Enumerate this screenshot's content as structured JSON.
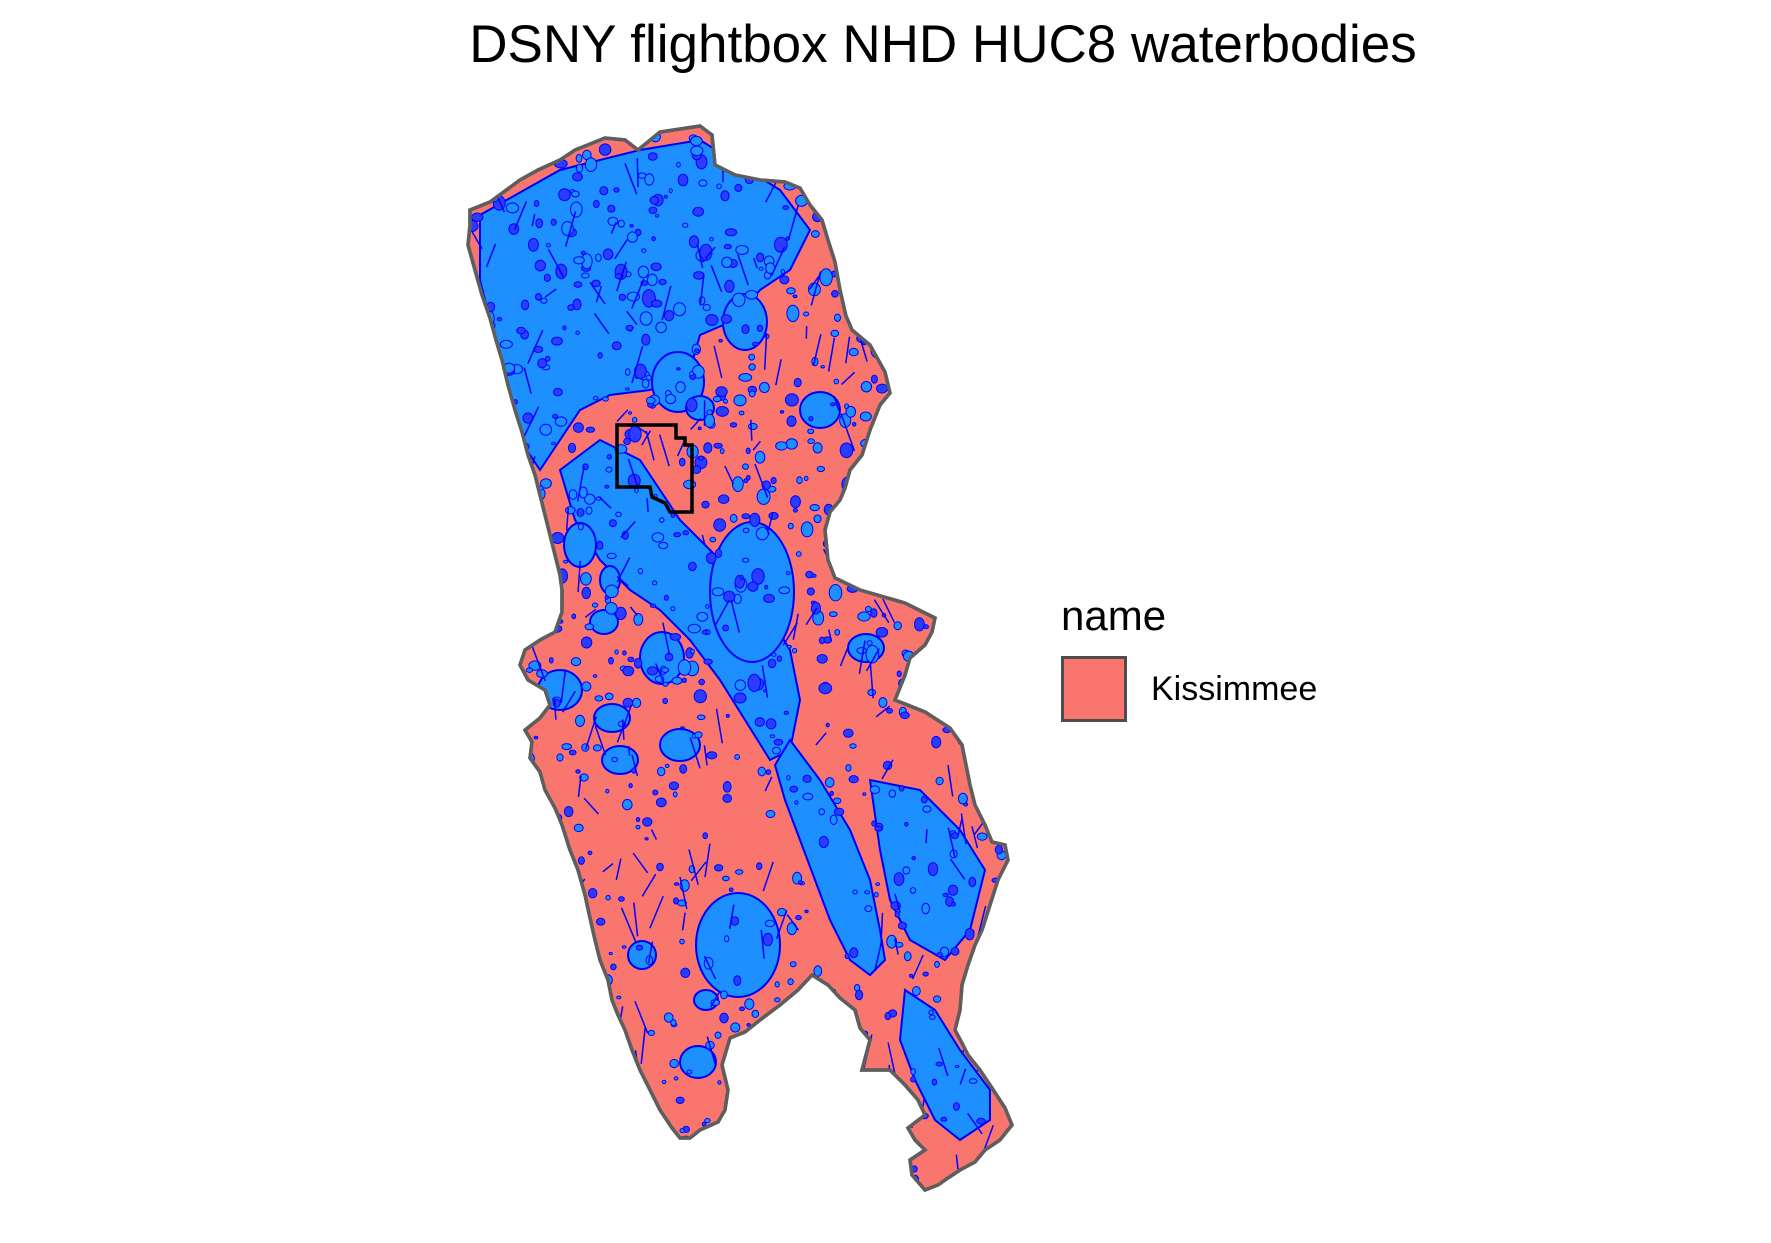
{
  "title": "DSNY flightbox NHD HUC8 waterbodies",
  "legend": {
    "title": "name",
    "items": [
      {
        "label": "Kissimmee",
        "color": "#f8766d"
      }
    ]
  },
  "colors": {
    "watershed_fill": "#f8766d",
    "watershed_outline": "#5e5e5e",
    "waterbody_fill": "#1e8fff",
    "waterbody_outline": "#0000ff",
    "flightbox_outline": "#000000"
  }
}
